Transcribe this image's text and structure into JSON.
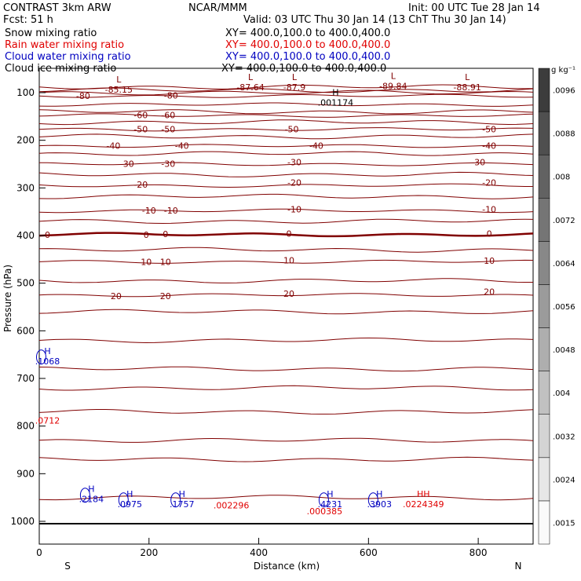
{
  "header": {
    "model": "CONTRAST   3km ARW",
    "center": "NCAR/MMM",
    "init": "Init: 00 UTC Tue 28 Jan 14",
    "fcst": "Fcst:    51 h",
    "valid": "Valid: 03 UTC Thu 30 Jan 14 (13 ChT Thu 30 Jan 14)"
  },
  "fields": [
    {
      "name": "Snow mixing ratio",
      "xy": "XY=  400.0,100.0  to  400.0,400.0",
      "color": "#000000"
    },
    {
      "name": "Rain water mixing ratio",
      "xy": "XY=  400.0,100.0  to  400.0,400.0",
      "color": "#e00000"
    },
    {
      "name": "Cloud water mixing ratio",
      "xy": "XY=  400.0,100.0  to  400.0,400.0",
      "color": "#0000c0"
    },
    {
      "name": "Cloud ice mixing ratio",
      "xy": "XY=  400.0,100.0  to  400.0,400.0",
      "color": "#000000"
    }
  ],
  "chart_data": {
    "type": "cross-section contour",
    "xlabel": "Distance (km)",
    "ylabel": "Pressure (hPa)",
    "xlim": [
      0,
      900
    ],
    "ylim": [
      1050,
      70
    ],
    "x_ticks": [
      0,
      200,
      400,
      600,
      800
    ],
    "y_ticks": [
      100,
      200,
      300,
      400,
      500,
      600,
      700,
      800,
      900,
      1000
    ],
    "x_end_labels": {
      "left": "S",
      "right": "N"
    },
    "temperature_isotherms_C": [
      {
        "value": -80,
        "p": 107
      },
      {
        "value": -70,
        "p": 125
      },
      {
        "value": -60,
        "p": 148
      },
      {
        "value": -50,
        "p": 177
      },
      {
        "value": -40,
        "p": 212
      },
      {
        "value": -30,
        "p": 250
      },
      {
        "value": -20,
        "p": 295
      },
      {
        "value": -10,
        "p": 348
      },
      {
        "value": 0,
        "p": 398
      },
      {
        "value": 10,
        "p": 455
      },
      {
        "value": 20,
        "p": 525
      }
    ],
    "unlabeled_contour_pressures": [
      88,
      95,
      100,
      140,
      162,
      192,
      228,
      272,
      318,
      370,
      430,
      495,
      560,
      620,
      680,
      720,
      770,
      830,
      870,
      950
    ],
    "contour_labels": [
      {
        "text": "-80",
        "x": 80,
        "p": 107
      },
      {
        "text": "-80",
        "x": 240,
        "p": 106
      },
      {
        "text": "-60",
        "x": 185,
        "p": 147
      },
      {
        "text": "-60",
        "x": 235,
        "p": 147
      },
      {
        "text": "-50",
        "x": 185,
        "p": 177
      },
      {
        "text": "-50",
        "x": 235,
        "p": 177
      },
      {
        "text": "-50",
        "x": 460,
        "p": 177
      },
      {
        "text": "-50",
        "x": 820,
        "p": 177
      },
      {
        "text": "-40",
        "x": 135,
        "p": 211
      },
      {
        "text": "-40",
        "x": 260,
        "p": 211
      },
      {
        "text": "-40",
        "x": 505,
        "p": 211
      },
      {
        "text": "-40",
        "x": 820,
        "p": 211
      },
      {
        "text": "-30",
        "x": 160,
        "p": 249
      },
      {
        "text": "-30",
        "x": 235,
        "p": 249
      },
      {
        "text": "-30",
        "x": 465,
        "p": 246
      },
      {
        "text": "-30",
        "x": 800,
        "p": 246
      },
      {
        "text": "-20",
        "x": 185,
        "p": 293
      },
      {
        "text": "-20",
        "x": 465,
        "p": 289
      },
      {
        "text": "-20",
        "x": 820,
        "p": 289
      },
      {
        "text": "-10",
        "x": 200,
        "p": 347
      },
      {
        "text": "-10",
        "x": 240,
        "p": 347
      },
      {
        "text": "-10",
        "x": 465,
        "p": 345
      },
      {
        "text": "-10",
        "x": 820,
        "p": 345
      },
      {
        "text": "0",
        "x": 15,
        "p": 398
      },
      {
        "text": "0",
        "x": 195,
        "p": 398
      },
      {
        "text": "0",
        "x": 230,
        "p": 397
      },
      {
        "text": "0",
        "x": 455,
        "p": 396
      },
      {
        "text": "0",
        "x": 820,
        "p": 396
      },
      {
        "text": "10",
        "x": 195,
        "p": 455
      },
      {
        "text": "10",
        "x": 230,
        "p": 455
      },
      {
        "text": "10",
        "x": 455,
        "p": 452
      },
      {
        "text": "10",
        "x": 820,
        "p": 453
      },
      {
        "text": "20",
        "x": 140,
        "p": 527
      },
      {
        "text": "20",
        "x": 230,
        "p": 527
      },
      {
        "text": "20",
        "x": 455,
        "p": 522
      },
      {
        "text": "20",
        "x": 820,
        "p": 518
      }
    ],
    "extrema_labels": [
      {
        "marker": "L",
        "value": "-85.15",
        "x": 145,
        "p": 95,
        "color": "#800000"
      },
      {
        "marker": "L",
        "value": "-87.64",
        "x": 385,
        "p": 90,
        "color": "#800000"
      },
      {
        "marker": "L",
        "value": "-87.9",
        "x": 465,
        "p": 90,
        "color": "#800000"
      },
      {
        "marker": "L",
        "value": "-89.84",
        "x": 645,
        "p": 88,
        "color": "#800000"
      },
      {
        "marker": "L",
        "value": "-88.91",
        "x": 780,
        "p": 90,
        "color": "#800000"
      },
      {
        "marker": "H",
        "value": ".001174",
        "x": 540,
        "p": 122,
        "color": "#000000"
      },
      {
        "marker": "H",
        "value": ".1068",
        "x": 15,
        "p": 665,
        "color": "#0000c0"
      },
      {
        "marker": "",
        "value": ".0712",
        "x": 15,
        "p": 790,
        "color": "#e00000"
      },
      {
        "marker": "H",
        "value": ".2184",
        "x": 95,
        "p": 955,
        "color": "#0000c0"
      },
      {
        "marker": "H",
        "value": ".0975",
        "x": 165,
        "p": 965,
        "color": "#0000c0"
      },
      {
        "marker": "H",
        "value": ".1757",
        "x": 260,
        "p": 965,
        "color": "#0000c0"
      },
      {
        "marker": "",
        "value": ".002296",
        "x": 350,
        "p": 968,
        "color": "#e00000"
      },
      {
        "marker": "H",
        "value": ".4231",
        "x": 530,
        "p": 965,
        "color": "#0000c0"
      },
      {
        "marker": "",
        "value": ".000385",
        "x": 520,
        "p": 980,
        "color": "#e00000"
      },
      {
        "marker": "H",
        "value": ".3903",
        "x": 620,
        "p": 965,
        "color": "#0000c0"
      },
      {
        "marker": "HH",
        "value": ".0224349",
        "x": 700,
        "p": 965,
        "color": "#e00000"
      }
    ],
    "colorbar": {
      "units": "g kg⁻¹",
      "levels": [
        ".0015",
        ".0024",
        ".0032",
        ".004",
        ".0048",
        ".0056",
        ".0064",
        ".0072",
        ".008",
        ".0088",
        ".0096"
      ]
    }
  }
}
